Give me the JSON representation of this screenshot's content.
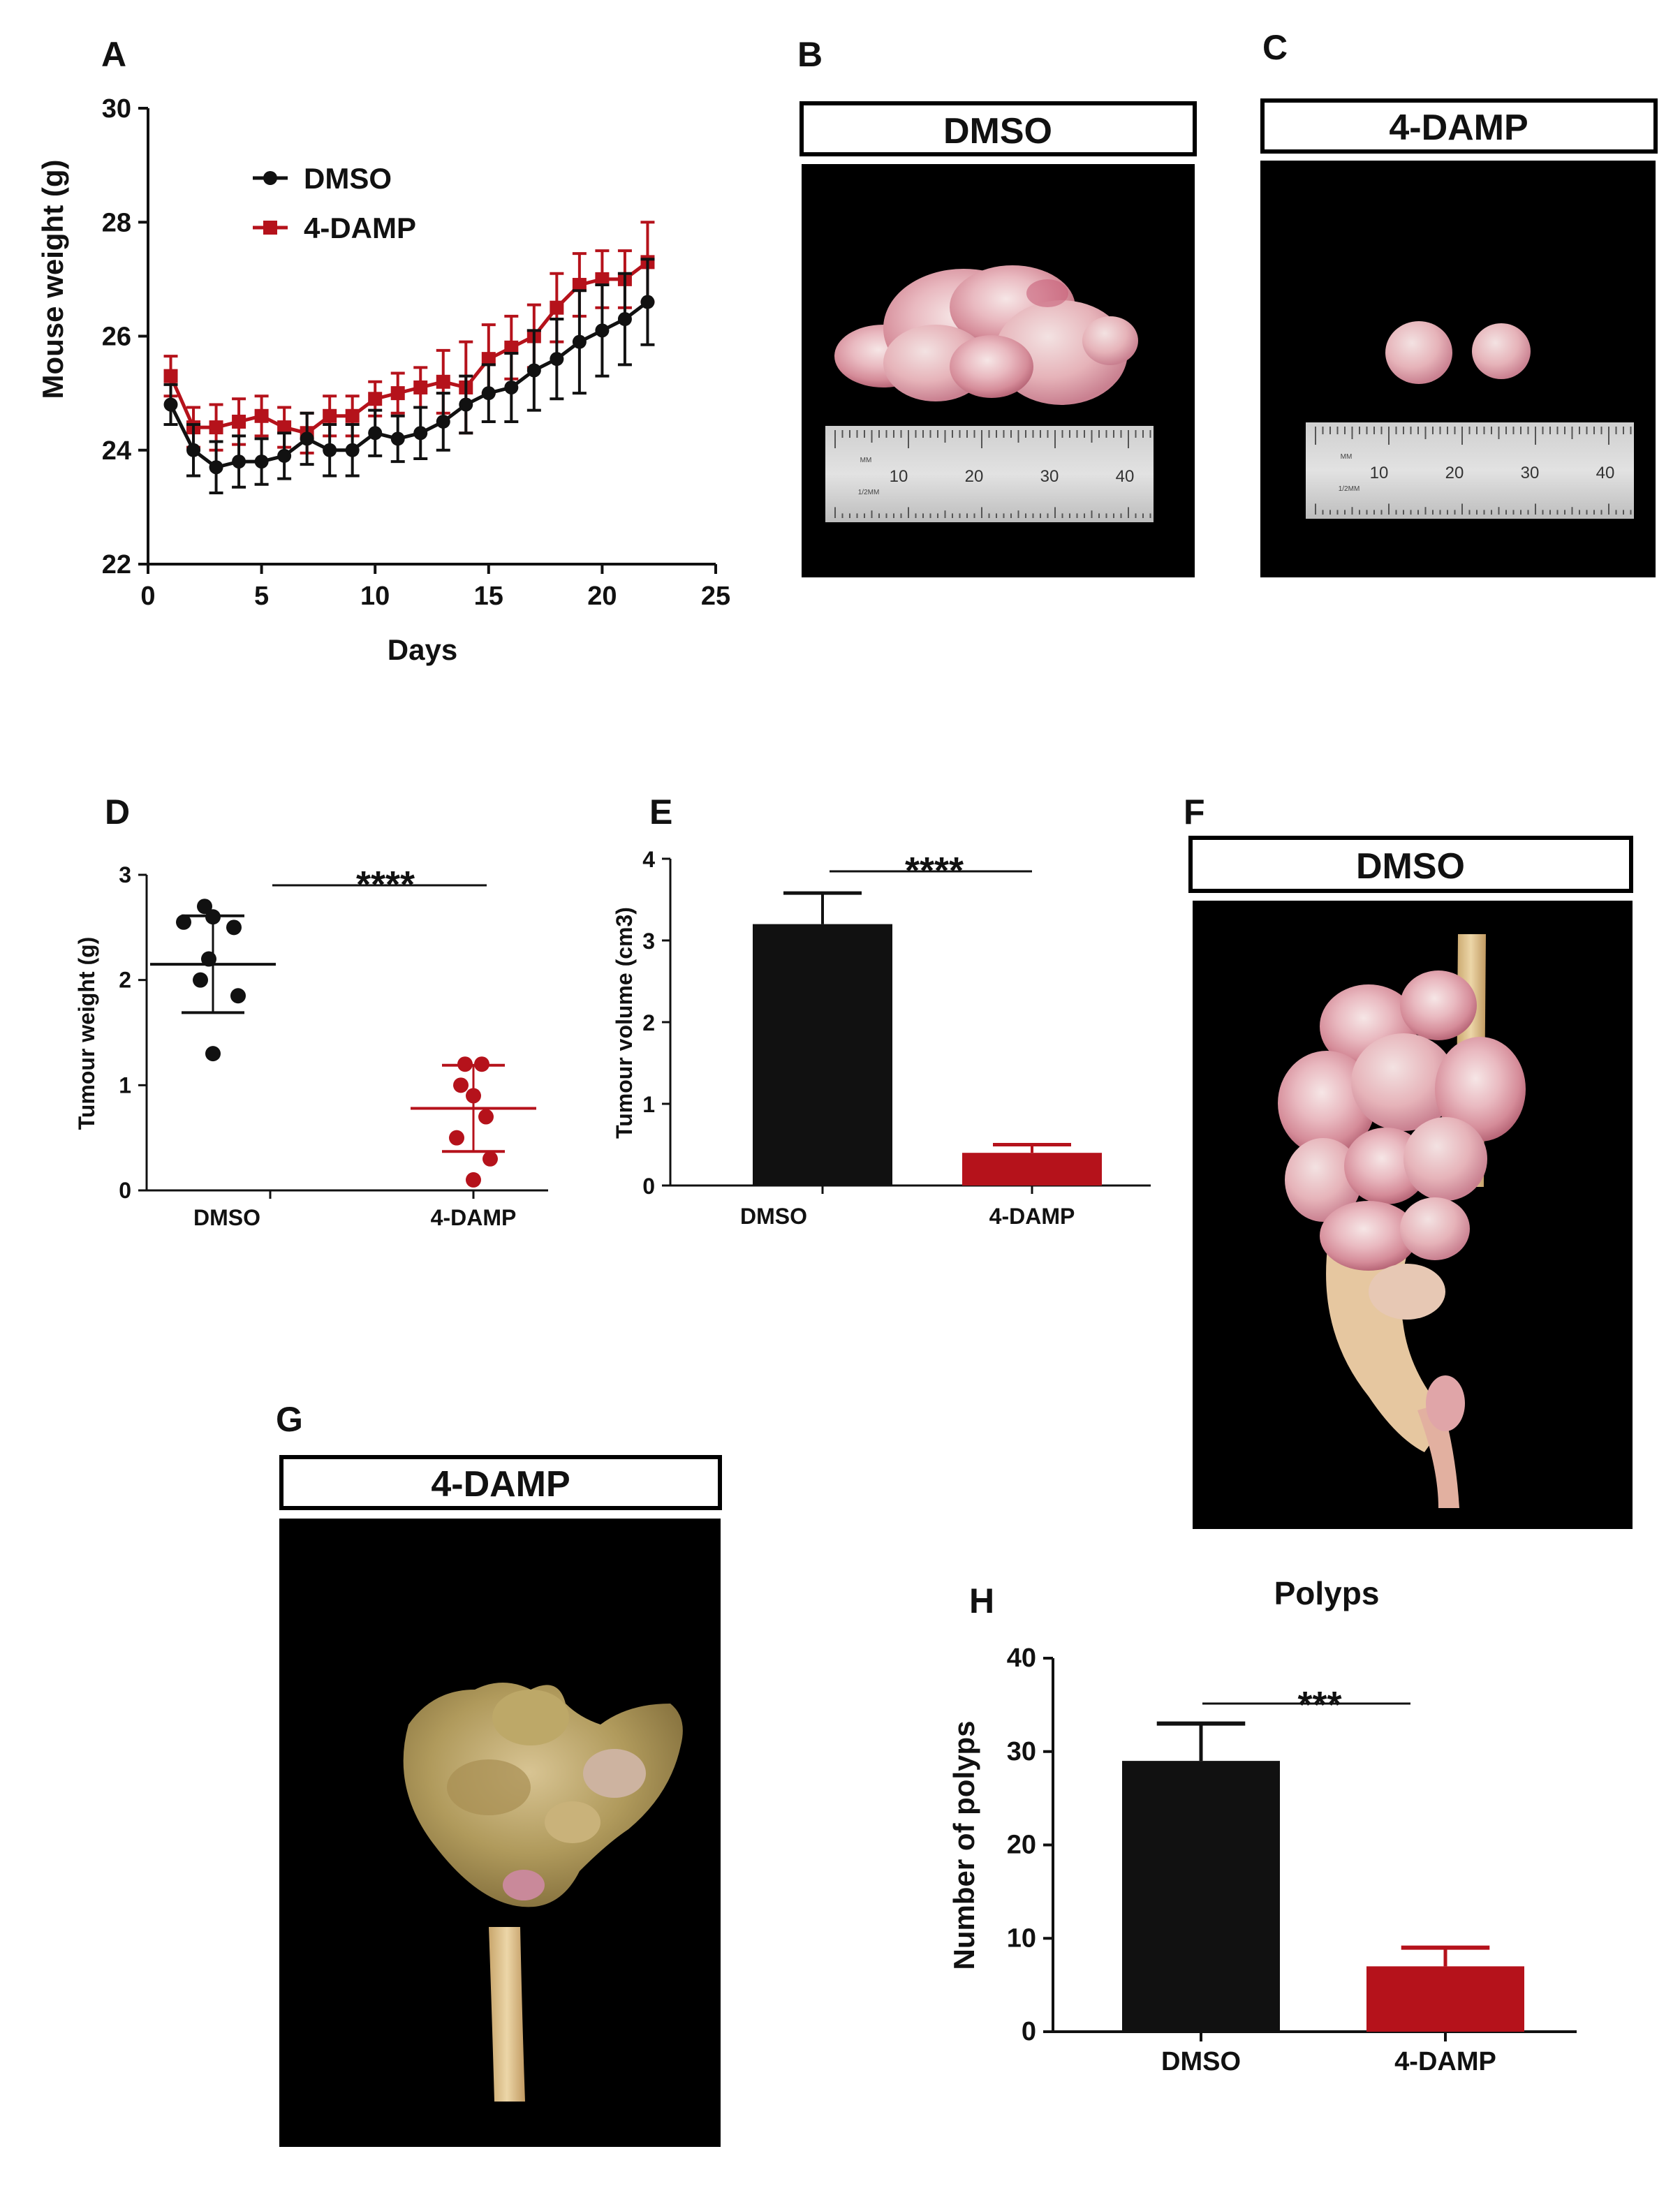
{
  "colors": {
    "dmso": "#111111",
    "damp": "#b5121b",
    "photo_bg": "#000000"
  },
  "panels": {
    "A": "A",
    "B": "B",
    "C": "C",
    "D": "D",
    "E": "E",
    "F": "F",
    "G": "G",
    "H": "H"
  },
  "photos": {
    "B": {
      "header": "DMSO"
    },
    "C": {
      "header": "4-DAMP"
    },
    "F": {
      "header": "DMSO"
    },
    "G": {
      "header": "4-DAMP"
    },
    "ruler": {
      "unit_label": "MM",
      "brand": "1/2MM",
      "marks": [
        "10",
        "20",
        "30",
        "40"
      ]
    }
  },
  "chart_data": [
    {
      "panel": "A",
      "type": "line",
      "title": "",
      "xlabel": "Days",
      "ylabel": "Mouse weight (g)",
      "xlim": [
        0,
        25
      ],
      "ylim": [
        22,
        30
      ],
      "xticks": [
        "0",
        "5",
        "10",
        "15",
        "20",
        "25"
      ],
      "yticks": [
        "22",
        "24",
        "26",
        "28",
        "30"
      ],
      "x": [
        1,
        2,
        3,
        4,
        5,
        6,
        7,
        8,
        9,
        10,
        11,
        12,
        13,
        14,
        15,
        16,
        17,
        18,
        19,
        20,
        21,
        22
      ],
      "series": [
        {
          "name": "DMSO",
          "color": "#111111",
          "marker": "circle",
          "values": [
            24.8,
            24.0,
            23.7,
            23.8,
            23.8,
            23.9,
            24.2,
            24.0,
            24.0,
            24.3,
            24.2,
            24.3,
            24.5,
            24.8,
            25.0,
            25.1,
            25.4,
            25.6,
            25.9,
            26.1,
            26.3,
            26.6
          ],
          "errors": [
            0.35,
            0.45,
            0.45,
            0.45,
            0.4,
            0.4,
            0.45,
            0.45,
            0.45,
            0.4,
            0.4,
            0.45,
            0.5,
            0.5,
            0.5,
            0.6,
            0.7,
            0.7,
            0.9,
            0.8,
            0.8,
            0.75
          ]
        },
        {
          "name": "4-DAMP",
          "color": "#b5121b",
          "marker": "square",
          "values": [
            25.3,
            24.4,
            24.4,
            24.5,
            24.6,
            24.4,
            24.3,
            24.6,
            24.6,
            24.9,
            25.0,
            25.1,
            25.2,
            25.1,
            25.6,
            25.8,
            26.0,
            26.5,
            26.9,
            27.0,
            27.0,
            27.3
          ],
          "errors": [
            0.35,
            0.35,
            0.4,
            0.4,
            0.35,
            0.35,
            0.35,
            0.35,
            0.35,
            0.3,
            0.35,
            0.35,
            0.55,
            0.8,
            0.6,
            0.55,
            0.55,
            0.6,
            0.55,
            0.5,
            0.5,
            0.7
          ]
        }
      ]
    },
    {
      "panel": "D",
      "type": "scatter",
      "title": "",
      "xlabel": "",
      "ylabel": "Tumour weight (g)",
      "ylim": [
        0,
        3
      ],
      "yticks": [
        "0",
        "1",
        "2",
        "3"
      ],
      "categories": [
        "DMSO",
        "4-DAMP"
      ],
      "significance": "****",
      "series": [
        {
          "name": "DMSO",
          "color": "#111111",
          "points": [
            2.7,
            2.55,
            2.6,
            2.5,
            2.2,
            2.0,
            1.85,
            1.3
          ],
          "jitter": [
            -0.1,
            -0.35,
            0.0,
            0.25,
            -0.05,
            -0.15,
            0.3,
            0.0
          ],
          "mean": 2.15,
          "sd": 0.46
        },
        {
          "name": "4-DAMP",
          "color": "#b5121b",
          "points": [
            1.2,
            1.2,
            1.0,
            0.9,
            0.7,
            0.5,
            0.3,
            0.1
          ],
          "jitter": [
            -0.1,
            0.1,
            -0.15,
            0.0,
            0.15,
            -0.2,
            0.2,
            0.0
          ],
          "mean": 0.78,
          "sd": 0.41
        }
      ]
    },
    {
      "panel": "E",
      "type": "bar",
      "title": "",
      "xlabel": "",
      "ylabel": "Tumour volume (cm3)",
      "ylim": [
        0,
        4
      ],
      "yticks": [
        "0",
        "1",
        "2",
        "3",
        "4"
      ],
      "categories": [
        "DMSO",
        "4-DAMP"
      ],
      "values": [
        3.2,
        0.4
      ],
      "errors": [
        0.38,
        0.1
      ],
      "significance": "****"
    },
    {
      "panel": "H",
      "type": "bar",
      "title": "Polyps",
      "xlabel": "",
      "ylabel": "Number of polyps",
      "ylim": [
        0,
        40
      ],
      "yticks": [
        "0",
        "10",
        "20",
        "30",
        "40"
      ],
      "categories": [
        "DMSO",
        "4-DAMP"
      ],
      "values": [
        29,
        7
      ],
      "errors": [
        4,
        2
      ],
      "significance": "***"
    }
  ]
}
